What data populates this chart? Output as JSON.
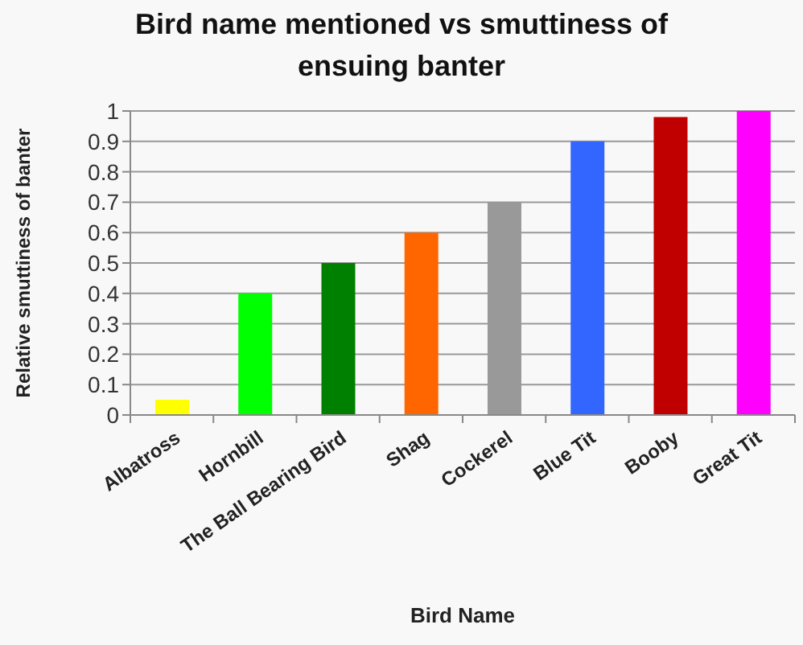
{
  "chart_data": {
    "type": "bar",
    "title": "Bird name mentioned vs smuttiness of ensuing banter",
    "xlabel": "Bird Name",
    "ylabel": "Relative smuttiness of banter",
    "categories": [
      "Albatross",
      "Hornbill",
      "The Ball Bearing Bird",
      "Shag",
      "Cockerel",
      "Blue Tit",
      "Booby",
      "Great Tit"
    ],
    "values": [
      0.05,
      0.4,
      0.5,
      0.6,
      0.7,
      0.9,
      0.98,
      1
    ],
    "colors": [
      "#ffff00",
      "#00ff00",
      "#008000",
      "#ff6600",
      "#999999",
      "#3366ff",
      "#c00000",
      "#ff00ff"
    ],
    "ylim": [
      0,
      1
    ],
    "yticks": [
      0,
      0.1,
      0.2,
      0.3,
      0.4,
      0.5,
      0.6,
      0.7,
      0.8,
      0.9,
      1
    ],
    "grid": "y"
  }
}
